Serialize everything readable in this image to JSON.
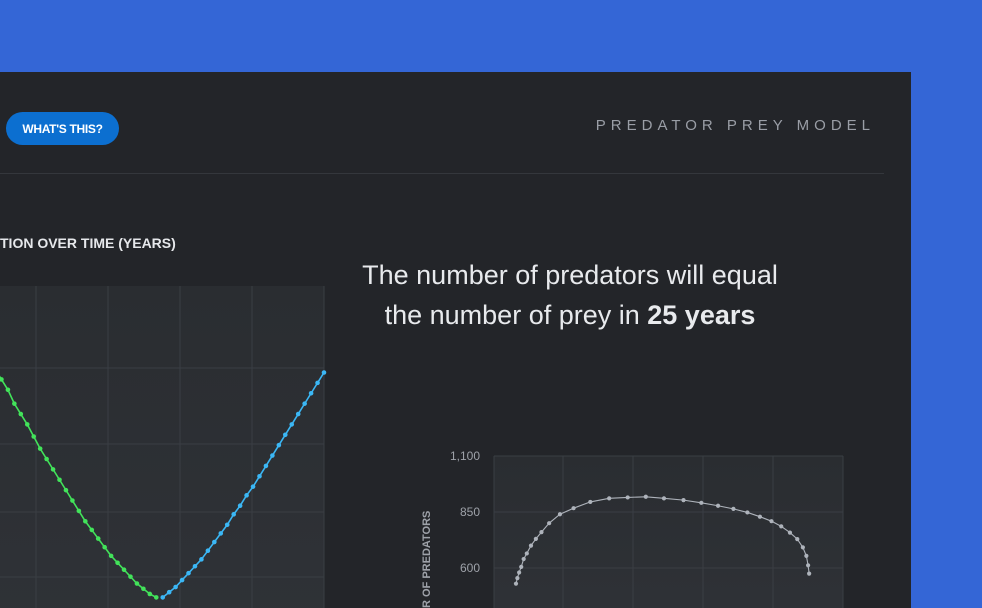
{
  "header": {
    "help_button": "WHAT'S THIS?",
    "app_title": "PREDATOR PREY MODEL"
  },
  "headline": {
    "line1": "The number of predators will equal",
    "line2_prefix": "the number of prey in ",
    "line2_bold": "25 years"
  },
  "colors": {
    "background": "#3466d6",
    "panel": "#232529",
    "button": "#0c6fd0",
    "prey_series": "#42e35a",
    "predator_series": "#3bb7f5",
    "phase_series": "#aeb3bb"
  },
  "chart_data": [
    {
      "type": "line",
      "title": "TION OVER TIME (YEARS)",
      "grid": true,
      "series": [
        {
          "color": "#42e35a",
          "x": [
            0,
            1,
            2,
            3,
            4,
            5,
            6,
            7,
            8,
            9,
            10,
            11,
            12,
            13,
            14,
            15,
            16,
            17,
            18,
            19,
            20,
            21,
            22,
            23,
            24,
            25
          ],
          "values": [
            0.76,
            0.73,
            0.7,
            0.66,
            0.63,
            0.6,
            0.565,
            0.53,
            0.5,
            0.47,
            0.44,
            0.41,
            0.38,
            0.35,
            0.32,
            0.295,
            0.27,
            0.245,
            0.22,
            0.2,
            0.18,
            0.16,
            0.14,
            0.125,
            0.11,
            0.1
          ]
        },
        {
          "color": "#3bb7f5",
          "x": [
            26,
            27,
            28,
            29,
            30,
            31,
            32,
            33,
            34,
            35,
            36,
            37,
            38,
            39,
            40,
            41,
            42,
            43,
            44,
            45,
            46,
            47,
            48,
            49,
            50,
            51
          ],
          "values": [
            0.1,
            0.115,
            0.13,
            0.15,
            0.17,
            0.19,
            0.21,
            0.235,
            0.26,
            0.285,
            0.31,
            0.34,
            0.365,
            0.395,
            0.42,
            0.45,
            0.48,
            0.51,
            0.54,
            0.57,
            0.6,
            0.63,
            0.66,
            0.69,
            0.72,
            0.75
          ]
        }
      ]
    },
    {
      "type": "scatter",
      "ylabel": "R OF PREDATORS",
      "y_ticks": [
        "1,100",
        "850",
        "600"
      ],
      "ylim": [
        420,
        1100
      ],
      "xlim": [
        0,
        100
      ],
      "grid": true,
      "series": [
        {
          "color": "#aeb3bb",
          "x": [
            6.3,
            6.7,
            7.2,
            7.8,
            8.5,
            9.4,
            10.6,
            12.0,
            13.6,
            15.8,
            18.9,
            22.8,
            27.6,
            33.0,
            38.3,
            43.5,
            48.7,
            54.3,
            59.4,
            64.2,
            68.6,
            72.6,
            76.2,
            79.5,
            82.3,
            84.8,
            86.9,
            88.5,
            89.5,
            90.0,
            90.3
          ],
          "values": [
            530,
            555,
            580,
            605,
            640,
            665,
            700,
            730,
            760,
            800,
            840,
            867,
            895,
            911,
            915,
            918,
            911,
            903,
            891,
            878,
            864,
            848,
            829,
            809,
            786,
            758,
            729,
            692,
            654,
            612,
            575
          ]
        }
      ]
    }
  ]
}
